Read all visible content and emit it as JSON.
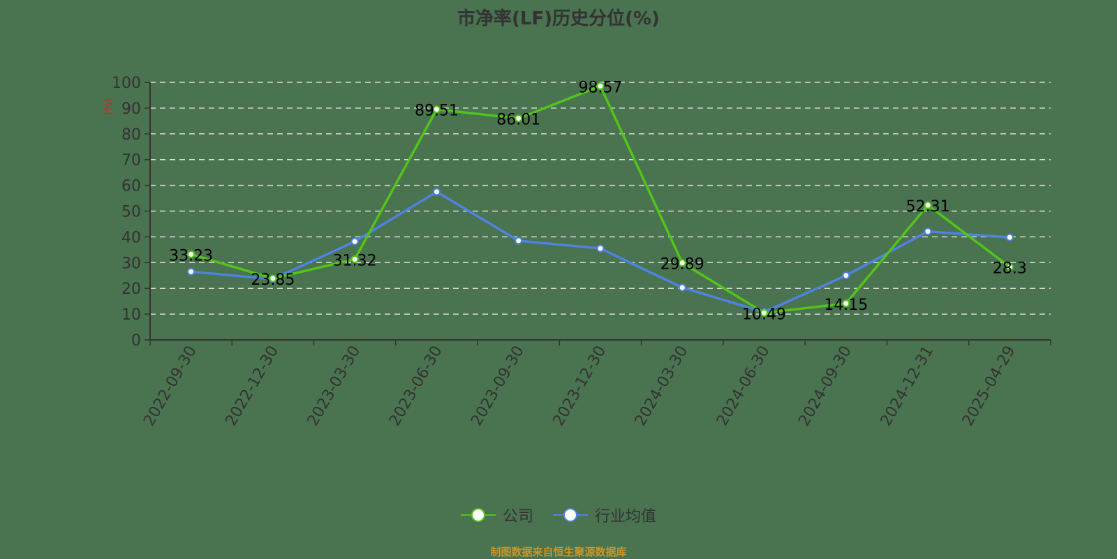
{
  "title": "市净率(LF)历史分位(%)",
  "source_text": "制图数据来自恒生聚源数据库",
  "y_axis_unit": "(%)",
  "legend": [
    {
      "label": "公司",
      "color": "#52c41a"
    },
    {
      "label": "行业均值",
      "color": "#4e83e0"
    }
  ],
  "chart_data": {
    "type": "line",
    "title": "市净率(LF)历史分位(%)",
    "xlabel": "",
    "ylabel": "(%)",
    "ylim": [
      0,
      100
    ],
    "yticks": [
      0,
      10,
      20,
      30,
      40,
      50,
      60,
      70,
      80,
      90,
      100
    ],
    "grid": true,
    "legend_position": "bottom",
    "categories": [
      "2022-09-30",
      "2022-12-30",
      "2023-03-30",
      "2023-06-30",
      "2023-09-30",
      "2023-12-30",
      "2024-03-30",
      "2024-06-30",
      "2024-09-30",
      "2024-12-31",
      "2025-04-29"
    ],
    "series": [
      {
        "name": "公司",
        "color": "#52c41a",
        "values": [
          33.23,
          23.85,
          31.32,
          89.51,
          86.01,
          98.57,
          29.89,
          10.49,
          14.15,
          52.31,
          28.3
        ],
        "labels_shown": true
      },
      {
        "name": "行业均值",
        "color": "#4e83e0",
        "values": [
          26.5,
          23.6,
          38.2,
          57.5,
          38.5,
          35.5,
          20.3,
          10.8,
          25.0,
          42.1,
          39.8
        ],
        "labels_shown": false
      }
    ]
  }
}
